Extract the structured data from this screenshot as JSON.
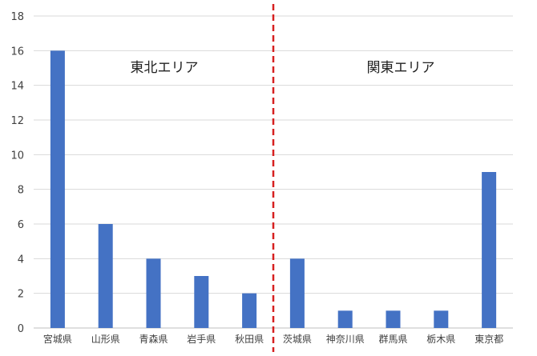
{
  "chart_data": {
    "type": "bar",
    "categories": [
      "宮城県",
      "山形県",
      "青森県",
      "岩手県",
      "秋田県",
      "茨城県",
      "神奈川県",
      "群馬県",
      "栃木県",
      "東京都"
    ],
    "values": [
      16,
      6,
      4,
      3,
      2,
      4,
      1,
      1,
      1,
      9
    ],
    "ylim": [
      0,
      18
    ],
    "yticks": [
      0,
      2,
      4,
      6,
      8,
      10,
      12,
      14,
      16,
      18
    ],
    "grid": true,
    "legend": "none",
    "regions": [
      {
        "label": "東北エリア",
        "categories": [
          "宮城県",
          "山形県",
          "青森県",
          "岩手県",
          "秋田県"
        ]
      },
      {
        "label": "関東エリア",
        "categories": [
          "茨城県",
          "神奈川県",
          "群馬県",
          "栃木県",
          "東京都"
        ]
      }
    ],
    "divider": {
      "after_category_index": 4,
      "style": "dashed",
      "color": "#d62020"
    }
  },
  "colors": {
    "bar": "#4472c4",
    "grid": "#d9d9d9",
    "axis": "#bfbfbf",
    "divider": "#d62020"
  }
}
